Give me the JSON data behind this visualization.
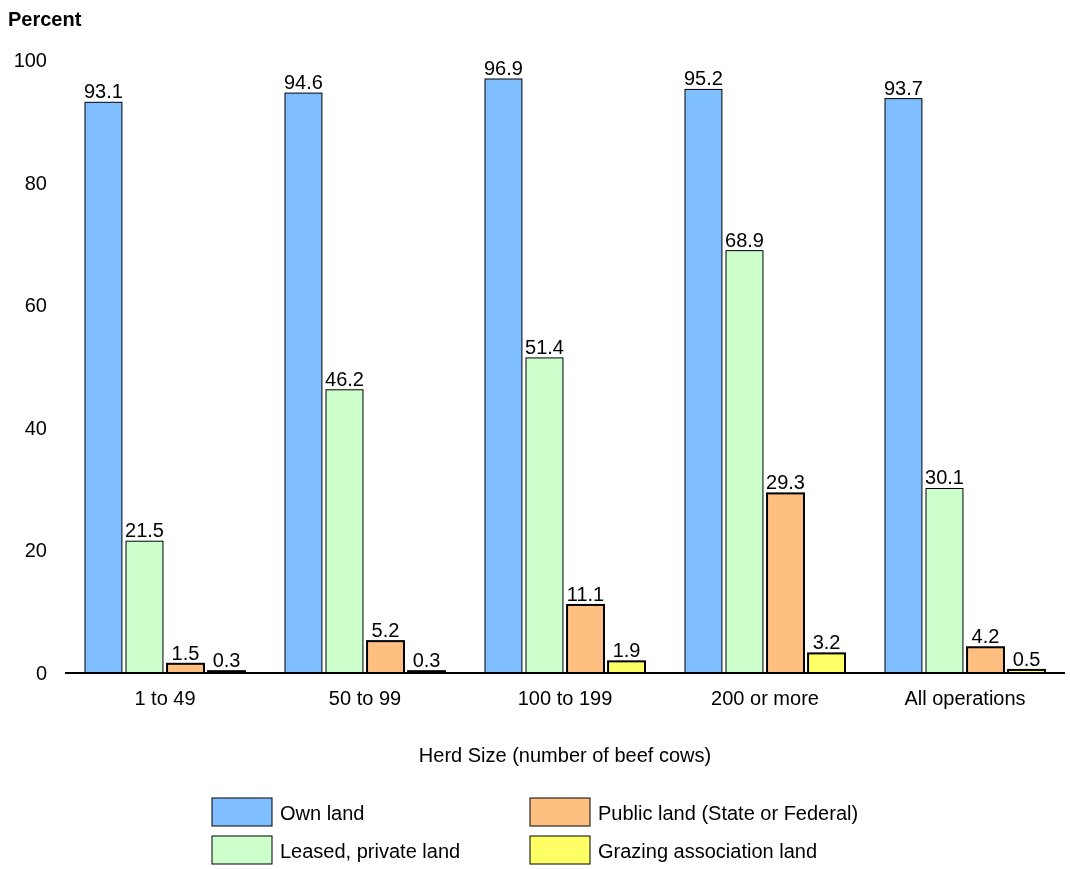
{
  "chart_data": {
    "type": "bar",
    "ylabel": "Percent",
    "xlabel": "Herd Size (number of beef cows)",
    "categories": [
      "1 to 49",
      "50 to 99",
      "100 to 199",
      "200 or more",
      "All operations"
    ],
    "series": [
      {
        "name": "Own land",
        "color": "#80bfff",
        "values": [
          93.1,
          94.6,
          96.9,
          95.2,
          93.7
        ]
      },
      {
        "name": "Leased, private land",
        "color": "#ccffcc",
        "values": [
          21.5,
          46.2,
          51.4,
          68.9,
          30.1
        ]
      },
      {
        "name": "Public land (State or Federal)",
        "color": "#ffbf80",
        "values": [
          1.5,
          5.2,
          11.1,
          29.3,
          4.2
        ]
      },
      {
        "name": "Grazing association land",
        "color": "#ffff66",
        "values": [
          0.3,
          0.3,
          1.9,
          3.2,
          0.5
        ]
      }
    ],
    "ylim": [
      0,
      100
    ],
    "yticks": [
      0,
      20,
      40,
      60,
      80,
      100
    ],
    "data_labels": true,
    "legend": "bottom",
    "grid": false
  }
}
